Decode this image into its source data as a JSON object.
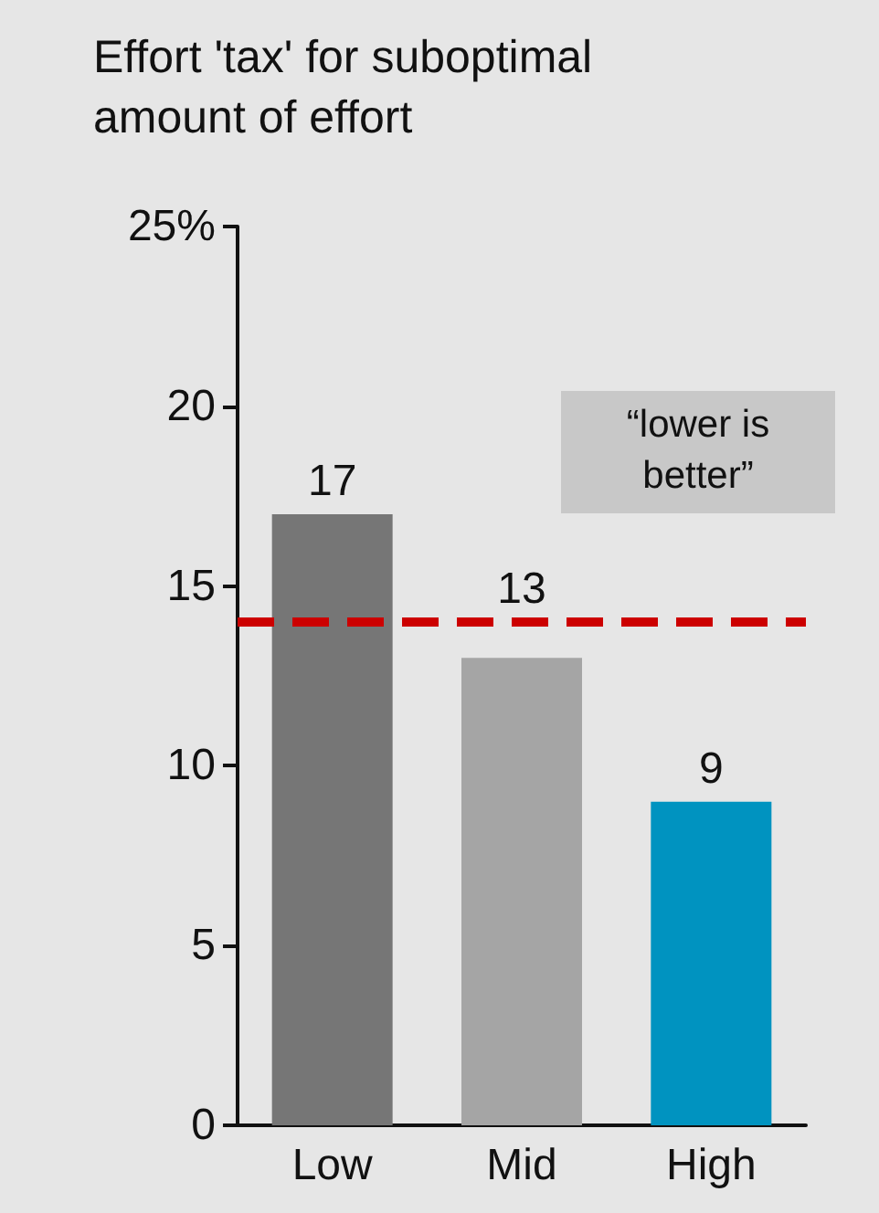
{
  "chart_data": {
    "type": "bar",
    "title": "Effort 'tax' for suboptimal\namount of effort",
    "categories": [
      "Low",
      "Mid",
      "High"
    ],
    "values": [
      17,
      13,
      9
    ],
    "colors": [
      "#767676",
      "#a5a5a5",
      "#0093c0"
    ],
    "ylim": [
      0,
      25
    ],
    "yticks": [
      0,
      5,
      10,
      15,
      20,
      {
        "value": 25,
        "label": "25%"
      }
    ],
    "grid": false,
    "data_labels": true,
    "ref_lines": [
      {
        "axis": "y",
        "value": 14,
        "color": "#cc0000",
        "line_style": "dashed"
      }
    ],
    "annotations": [
      "“lower is\nbetter”"
    ]
  }
}
